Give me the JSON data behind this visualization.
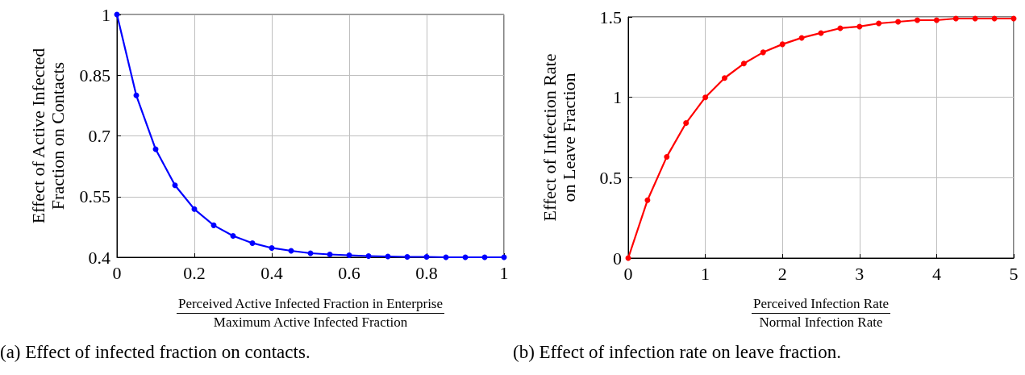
{
  "chart_data": [
    {
      "type": "line",
      "xlabel": "Perceived Active Infected Fraction in Enterprise\nMaximum Active Infected Fraction",
      "ylabel": "Effect of Active Infected\nFraction on Contacts",
      "annotations": [
        "(a) Effect of infected fraction on contacts."
      ],
      "x": [
        0,
        0.05,
        0.1,
        0.15,
        0.2,
        0.25,
        0.3,
        0.35,
        0.4,
        0.45,
        0.5,
        0.55,
        0.6,
        0.65,
        0.7,
        0.75,
        0.8,
        0.85,
        0.9,
        0.95,
        1
      ],
      "series": [
        {
          "color": "#0000ff",
          "values": [
            1,
            0.8,
            0.667,
            0.578,
            0.519,
            0.479,
            0.453,
            0.435,
            0.423,
            0.416,
            0.41,
            0.407,
            0.405,
            0.403,
            0.402,
            0.401,
            0.401,
            0.4,
            0.4,
            0.4,
            0.4
          ]
        }
      ],
      "xlim": [
        0,
        1
      ],
      "ylim": [
        0.4,
        1
      ],
      "xticks": [
        0,
        0.2,
        0.4,
        0.6,
        0.8,
        1
      ],
      "yticks": [
        0.4,
        0.55,
        0.7,
        0.85,
        1
      ],
      "grid": true,
      "marker": "circle",
      "line_style": "solid"
    },
    {
      "type": "line",
      "xlabel": "Perceived Infection Rate\nNormal Infection Rate",
      "ylabel": "Effect of Infection Rate\non Leave Fraction",
      "annotations": [
        "(b) Effect of infection rate on leave fraction."
      ],
      "x": [
        0,
        0.25,
        0.5,
        0.75,
        1,
        1.25,
        1.5,
        1.75,
        2,
        2.25,
        2.5,
        2.75,
        3,
        3.25,
        3.5,
        3.75,
        4,
        4.25,
        4.5,
        4.75,
        5
      ],
      "series": [
        {
          "color": "#ff0000",
          "values": [
            0,
            0.36,
            0.63,
            0.84,
            1,
            1.12,
            1.21,
            1.28,
            1.33,
            1.37,
            1.4,
            1.43,
            1.44,
            1.46,
            1.47,
            1.48,
            1.48,
            1.49,
            1.49,
            1.49,
            1.49
          ]
        }
      ],
      "xlim": [
        0,
        5
      ],
      "ylim": [
        0,
        1.5
      ],
      "xticks": [
        0,
        1,
        2,
        3,
        4,
        5
      ],
      "yticks": [
        0,
        0.5,
        1,
        1.5
      ],
      "grid": true,
      "marker": "circle",
      "line_style": "solid"
    }
  ]
}
